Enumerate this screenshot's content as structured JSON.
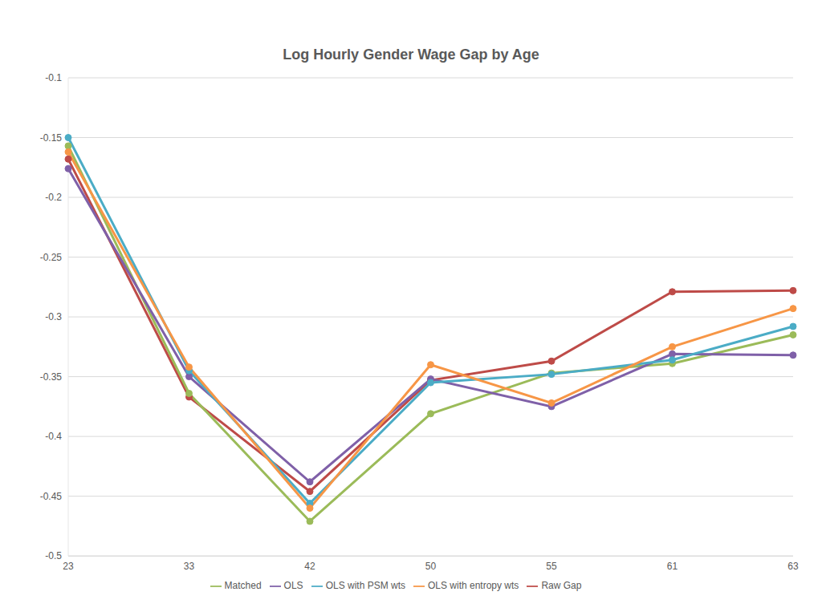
{
  "chart_data": {
    "type": "line",
    "title": "Log Hourly Gender Wage Gap by Age",
    "categories": [
      "23",
      "33",
      "42",
      "50",
      "55",
      "61",
      "63"
    ],
    "series": [
      {
        "name": "Raw Gap",
        "color": "#be4b48",
        "values": [
          -0.168,
          -0.367,
          -0.446,
          -0.353,
          -0.337,
          -0.279,
          -0.278
        ]
      },
      {
        "name": "Matched",
        "color": "#9bbb59",
        "values": [
          -0.157,
          -0.364,
          -0.471,
          -0.381,
          -0.347,
          -0.339,
          -0.315
        ]
      },
      {
        "name": "OLS",
        "color": "#7f60a8",
        "values": [
          -0.176,
          -0.35,
          -0.438,
          -0.352,
          -0.375,
          -0.331,
          -0.332
        ]
      },
      {
        "name": "OLS with PSM wts",
        "color": "#4bacc6",
        "values": [
          -0.15,
          -0.345,
          -0.456,
          -0.355,
          -0.348,
          -0.336,
          -0.308
        ]
      },
      {
        "name": "OLS with entropy wts",
        "color": "#f79646",
        "values": [
          -0.162,
          -0.342,
          -0.46,
          -0.34,
          -0.372,
          -0.325,
          -0.293
        ]
      }
    ],
    "ylim": [
      -0.5,
      -0.1
    ],
    "yticks": [
      -0.5,
      -0.45,
      -0.4,
      -0.35,
      -0.3,
      -0.25,
      -0.2,
      -0.15,
      -0.1
    ],
    "grid": true,
    "legend": "bottom",
    "marker": "circle",
    "line_style": "solid"
  }
}
